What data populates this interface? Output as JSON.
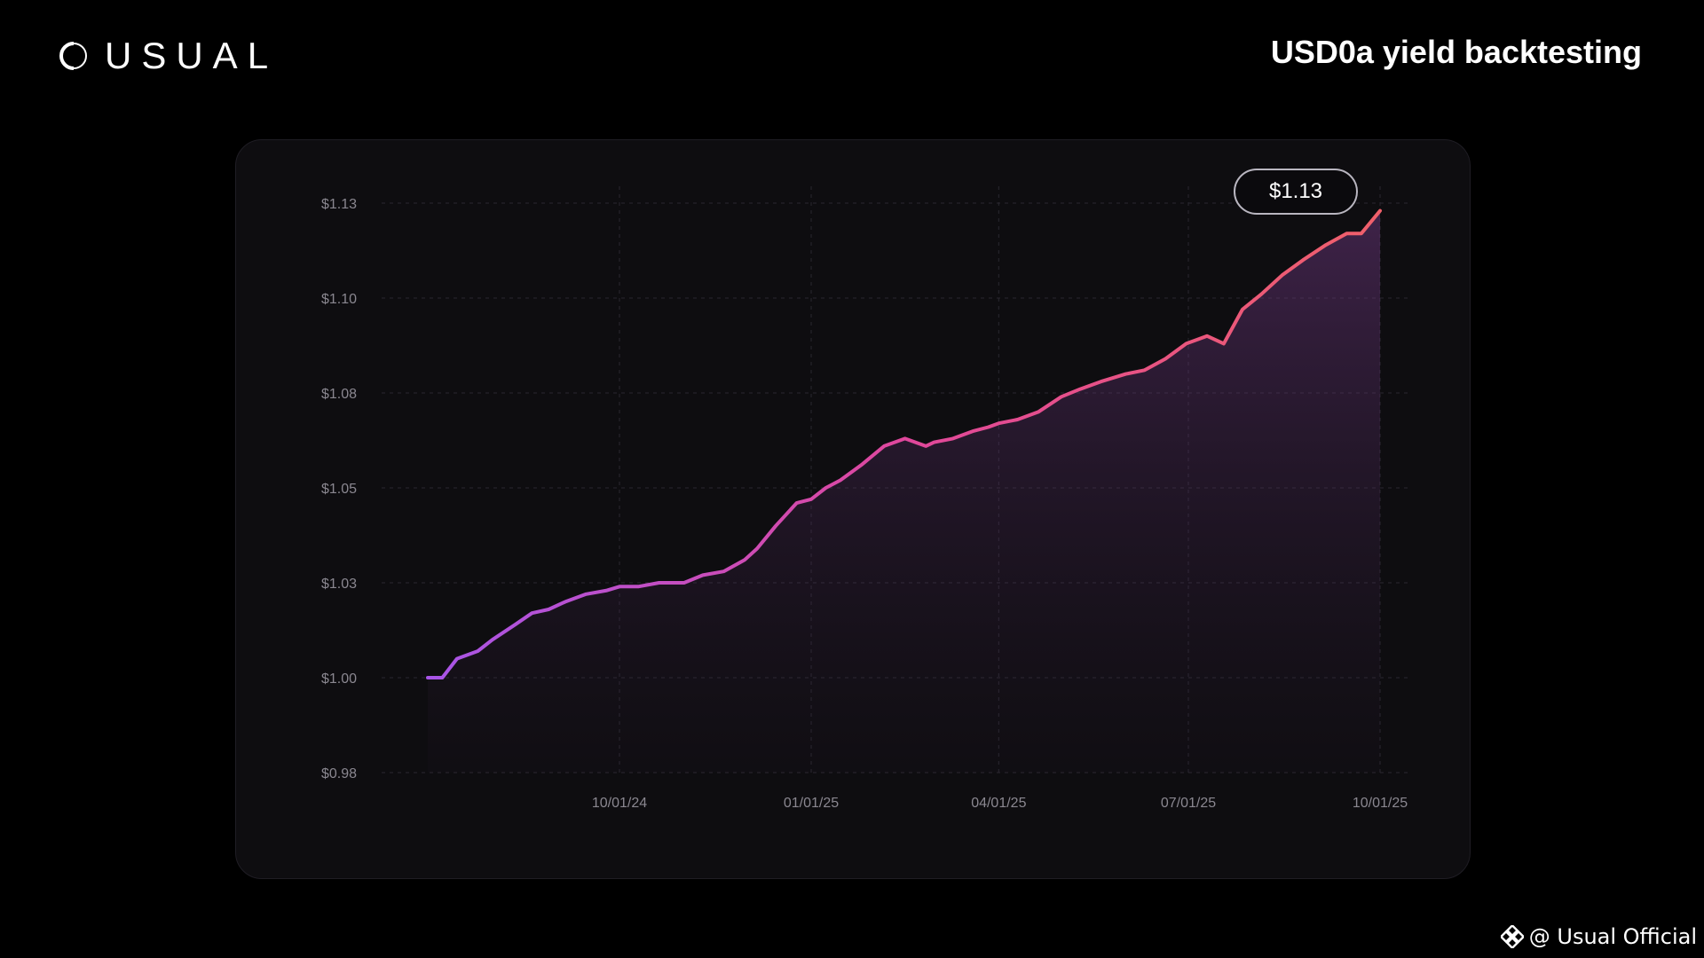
{
  "header": {
    "brand_name": "USUAL",
    "brand_icon": "usual-logo-icon",
    "title": "USD0a yield backtesting"
  },
  "badge": {
    "value_label": "$1.13"
  },
  "watermark": {
    "text": "@ Usual Official",
    "icon": "binance-square-icon"
  },
  "colors": {
    "background": "#000000",
    "card": "#0e0d10",
    "line_start": "#a855e8",
    "line_mid": "#e0479c",
    "line_end": "#f0606a",
    "axis_text": "#8a8790",
    "grid": "#2a2830"
  },
  "chart_data": {
    "type": "area",
    "title": "USD0a yield backtesting",
    "xlabel": "",
    "ylabel": "",
    "x_ticks": [
      "10/01/24",
      "01/01/25",
      "04/01/25",
      "07/01/25",
      "10/01/25"
    ],
    "y_ticks": [
      "$0.98",
      "$1.00",
      "$1.03",
      "$1.05",
      "$1.08",
      "$1.10",
      "$1.13"
    ],
    "y_tick_values": [
      0.975,
      1.0,
      1.025,
      1.05,
      1.075,
      1.1,
      1.125
    ],
    "ylim": [
      0.975,
      1.125
    ],
    "xlim": [
      "2024-07-01",
      "2025-10-01"
    ],
    "grid": true,
    "legend": "none",
    "series": [
      {
        "x": [
          "2024-07-01",
          "2024-07-08",
          "2024-07-15",
          "2024-07-25",
          "2024-08-01",
          "2024-08-12",
          "2024-08-20",
          "2024-08-28",
          "2024-09-05",
          "2024-09-15",
          "2024-09-25",
          "2024-10-01",
          "2024-10-10",
          "2024-10-20",
          "2024-10-25",
          "2024-11-01",
          "2024-11-10",
          "2024-11-20",
          "2024-11-30",
          "2024-12-06",
          "2024-12-15",
          "2024-12-25",
          "2025-01-01",
          "2025-01-08",
          "2025-01-15",
          "2025-01-25",
          "2025-02-05",
          "2025-02-15",
          "2025-02-25",
          "2025-03-01",
          "2025-03-10",
          "2025-03-20",
          "2025-03-27",
          "2025-04-01",
          "2025-04-10",
          "2025-04-20",
          "2025-05-01",
          "2025-05-10",
          "2025-05-20",
          "2025-06-01",
          "2025-06-10",
          "2025-06-20",
          "2025-06-30",
          "2025-07-10",
          "2025-07-18",
          "2025-07-23",
          "2025-07-27",
          "2025-08-05",
          "2025-08-15",
          "2025-08-25",
          "2025-09-05",
          "2025-09-15",
          "2025-09-22",
          "2025-10-01"
        ],
        "values": [
          1.0,
          1.0,
          1.005,
          1.007,
          1.01,
          1.014,
          1.017,
          1.018,
          1.02,
          1.022,
          1.023,
          1.024,
          1.024,
          1.025,
          1.025,
          1.025,
          1.027,
          1.028,
          1.031,
          1.034,
          1.04,
          1.046,
          1.047,
          1.05,
          1.052,
          1.056,
          1.061,
          1.063,
          1.061,
          1.062,
          1.063,
          1.065,
          1.066,
          1.067,
          1.068,
          1.07,
          1.074,
          1.076,
          1.078,
          1.08,
          1.081,
          1.084,
          1.088,
          1.09,
          1.088,
          1.093,
          1.097,
          1.101,
          1.106,
          1.11,
          1.114,
          1.117,
          1.117,
          1.123
        ]
      }
    ]
  }
}
